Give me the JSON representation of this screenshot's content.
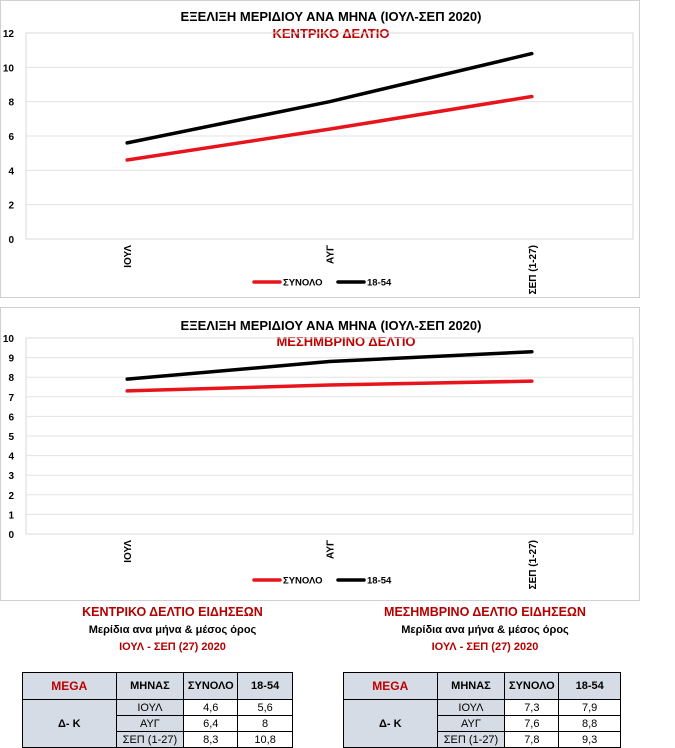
{
  "charts": [
    {
      "title": "ΕΞΕΛΙΞΗ ΜΕΡΙΔΙΟΥ ΑΝΑ ΜΗΝΑ (ΙΟΥΛ-ΣΕΠ 2020)",
      "subtitle": "ΚΕΝΤΡΙΚΟ ΔΕΛΤΙΟ"
    },
    {
      "title": "ΕΞΕΛΙΞΗ ΜΕΡΙΔΙΟΥ ΑΝΑ ΜΗΝΑ (ΙΟΥΛ-ΣΕΠ 2020)",
      "subtitle": "ΜΕΣΗΜΒΡΙΝΟ ΔΕΛΤΙΟ"
    }
  ],
  "chart_data": [
    {
      "type": "line",
      "title": "ΕΞΕΛΙΞΗ ΜΕΡΙΔΙΟΥ ΑΝΑ ΜΗΝΑ (ΙΟΥΛ-ΣΕΠ 2020)",
      "subtitle": "ΚΕΝΤΡΙΚΟ ΔΕΛΤΙΟ",
      "categories": [
        "ΙΟΥΛ",
        "ΑΥΓ",
        "ΣΕΠ (1-27)"
      ],
      "series": [
        {
          "name": "ΣΥΝΟΛΟ",
          "values": [
            4.6,
            6.4,
            8.3
          ],
          "color": "#e8141b"
        },
        {
          "name": "18-54",
          "values": [
            5.6,
            8,
            10.8
          ],
          "color": "#000000"
        }
      ],
      "yticks": [
        "0",
        "2",
        "4",
        "6",
        "8",
        "10",
        "12"
      ],
      "ylim": [
        0,
        12
      ],
      "grid": true,
      "legend": "bottom"
    },
    {
      "type": "line",
      "title": "ΕΞΕΛΙΞΗ ΜΕΡΙΔΙΟΥ ΑΝΑ ΜΗΝΑ (ΙΟΥΛ-ΣΕΠ 2020)",
      "subtitle": "ΜΕΣΗΜΒΡΙΝΟ ΔΕΛΤΙΟ",
      "categories": [
        "ΙΟΥΛ",
        "ΑΥΓ",
        "ΣΕΠ (1-27)"
      ],
      "series": [
        {
          "name": "ΣΥΝΟΛΟ",
          "values": [
            7.3,
            7.6,
            7.8
          ],
          "color": "#e8141b"
        },
        {
          "name": "18-54",
          "values": [
            7.9,
            8.8,
            9.3
          ],
          "color": "#000000"
        }
      ],
      "yticks": [
        "0",
        "1",
        "2",
        "3",
        "4",
        "5",
        "6",
        "7",
        "8",
        "9",
        "10"
      ],
      "ylim": [
        0,
        10
      ],
      "grid": true,
      "legend": "bottom"
    }
  ],
  "tables": [
    {
      "heading": "ΚΕΝΤΡΙΚΟ ΔΕΛΤΙΟ ΕΙΔΗΣΕΩΝ",
      "subheading": "Μερίδια ανα μήνα & μέσος όρος",
      "period": "ΙΟΥΛ - ΣΕΠ (27) 2020",
      "channel": "MEGA",
      "columns": [
        "ΜΗΝΑΣ",
        "ΣΥΝΟΛΟ",
        "18-54"
      ],
      "group": "Δ- Κ",
      "rows": [
        [
          "ΙΟΥΛ",
          "4,6",
          "5,6"
        ],
        [
          "ΑΥΓ",
          "6,4",
          "8"
        ],
        [
          "ΣΕΠ (1-27)",
          "8,3",
          "10,8"
        ]
      ]
    },
    {
      "heading": "ΜΕΣΗΜΒΡΙΝΟ ΔΕΛΤΙΟ ΕΙΔΗΣΕΩΝ",
      "subheading": "Μερίδια ανα μήνα & μέσος όρος",
      "period": "ΙΟΥΛ - ΣΕΠ (27) 2020",
      "channel": "MEGA",
      "columns": [
        "ΜΗΝΑΣ",
        "ΣΥΝΟΛΟ",
        "18-54"
      ],
      "group": "Δ- Κ",
      "rows": [
        [
          "ΙΟΥΛ",
          "7,3",
          "7,9"
        ],
        [
          "ΑΥΓ",
          "7,6",
          "8,8"
        ],
        [
          "ΣΕΠ (1-27)",
          "7,8",
          "9,3"
        ]
      ]
    }
  ]
}
